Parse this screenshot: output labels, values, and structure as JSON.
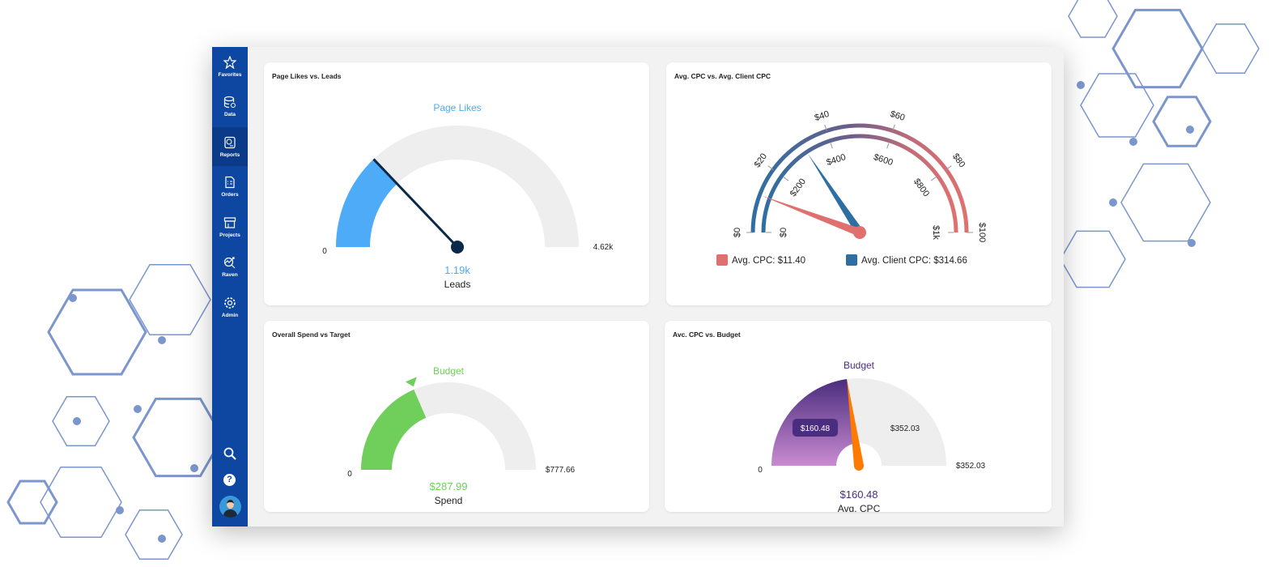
{
  "sidebar": {
    "items": [
      {
        "label": "Favorites",
        "icon": "star-icon"
      },
      {
        "label": "Data",
        "icon": "database-icon"
      },
      {
        "label": "Reports",
        "icon": "report-icon",
        "active": true
      },
      {
        "label": "Orders",
        "icon": "orders-icon"
      },
      {
        "label": "Projects",
        "icon": "projects-icon"
      },
      {
        "label": "Raven",
        "icon": "raven-icon"
      },
      {
        "label": "Admin",
        "icon": "gear-icon"
      }
    ],
    "bottom": [
      "search-icon",
      "help-icon",
      "avatar"
    ]
  },
  "chart_data": [
    {
      "type": "gauge",
      "title": "Page Likes vs. Leads",
      "target_label": "Page Likes",
      "min": "0",
      "max_label": "4.62k",
      "min_value": 0,
      "max": 4620,
      "value": 1190,
      "value_label": "1.19k",
      "label": "Leads",
      "color": "#4dabf7",
      "needle": "#0b2a4a"
    },
    {
      "type": "gauge-dual",
      "title": "Avg. CPC vs. Avg. Client CPC",
      "outer": {
        "ticks": [
          "$0",
          "$20",
          "$40",
          "$60",
          "$80",
          "$100"
        ],
        "max": 100,
        "value": 11.4,
        "color": "#e07070"
      },
      "inner": {
        "ticks": [
          "$0",
          "$200",
          "$400",
          "$600",
          "$800",
          "$1k"
        ],
        "max": 1000,
        "value": 314.66,
        "color": "#2e6fa3"
      },
      "legend": [
        {
          "label": "Avg. CPC: $11.40",
          "color": "#e07070"
        },
        {
          "label": "Avg. Client CPC: $314.66",
          "color": "#2e6fa3"
        }
      ]
    },
    {
      "type": "gauge",
      "title": "Overall Spend vs Target",
      "target_label": "Budget",
      "min": "0",
      "max_label": "$777.66",
      "min_value": 0,
      "max": 777.66,
      "value": 287.99,
      "value_label": "$287.99",
      "label": "Spend",
      "color": "#6fcf5a"
    },
    {
      "type": "gauge",
      "title": "Avc. CPC vs. Budget",
      "target_label": "Budget",
      "min": "0",
      "max_label": "$352.03",
      "min_value": 0,
      "max": 352.03,
      "value": 160.48,
      "value_label": "$160.48",
      "label": "Avg. CPC",
      "remaining_label": "$352.03",
      "color": "#7a4aa8",
      "needle": "#ff7a00"
    }
  ]
}
